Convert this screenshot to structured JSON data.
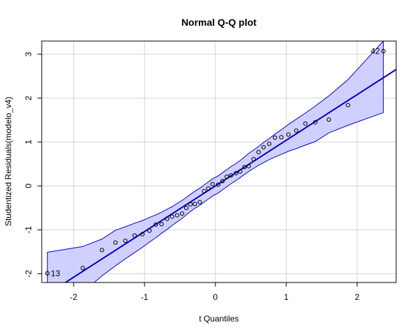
{
  "chart_data": {
    "type": "scatter",
    "title": "Normal Q-Q plot",
    "xlabel": "t Quantiles",
    "ylabel": "Studentized Residuals(modelo_v4)",
    "xlim": [
      -2.45,
      2.55
    ],
    "ylim": [
      -2.2,
      3.3
    ],
    "grid": true,
    "x_ticks": [
      -2,
      -1,
      0,
      1,
      2
    ],
    "y_ticks": [
      -2,
      -1,
      0,
      1,
      2,
      3
    ],
    "x_tick_labels": [
      "-2",
      "-1",
      "0",
      "1",
      "2"
    ],
    "y_tick_labels": [
      "-2",
      "-1",
      "0",
      "1",
      "2",
      "3"
    ],
    "colors": {
      "points": "#000000",
      "line": "#0000cd",
      "band_fill": "#c8c8ff",
      "band_stroke": "#0000cd",
      "grid": "#d3d3d3"
    },
    "reference_line": {
      "intercept": 0.0,
      "slope": 1.04
    },
    "points": [
      {
        "x": -2.37,
        "y": -1.99,
        "label": "13"
      },
      {
        "x": -1.87,
        "y": -1.87
      },
      {
        "x": -1.6,
        "y": -1.46
      },
      {
        "x": -1.41,
        "y": -1.29
      },
      {
        "x": -1.27,
        "y": -1.25
      },
      {
        "x": -1.14,
        "y": -1.13
      },
      {
        "x": -1.03,
        "y": -1.1
      },
      {
        "x": -0.93,
        "y": -1.02
      },
      {
        "x": -0.84,
        "y": -0.88
      },
      {
        "x": -0.76,
        "y": -0.87
      },
      {
        "x": -0.68,
        "y": -0.75
      },
      {
        "x": -0.61,
        "y": -0.7
      },
      {
        "x": -0.54,
        "y": -0.67
      },
      {
        "x": -0.47,
        "y": -0.63
      },
      {
        "x": -0.41,
        "y": -0.5
      },
      {
        "x": -0.35,
        "y": -0.42
      },
      {
        "x": -0.29,
        "y": -0.41
      },
      {
        "x": -0.22,
        "y": -0.37
      },
      {
        "x": -0.16,
        "y": -0.12
      },
      {
        "x": -0.1,
        "y": -0.06
      },
      {
        "x": -0.04,
        "y": 0.04
      },
      {
        "x": 0.04,
        "y": 0.03
      },
      {
        "x": 0.1,
        "y": 0.11
      },
      {
        "x": 0.16,
        "y": 0.21
      },
      {
        "x": 0.22,
        "y": 0.24
      },
      {
        "x": 0.29,
        "y": 0.29
      },
      {
        "x": 0.35,
        "y": 0.33
      },
      {
        "x": 0.41,
        "y": 0.43
      },
      {
        "x": 0.47,
        "y": 0.45
      },
      {
        "x": 0.54,
        "y": 0.61
      },
      {
        "x": 0.61,
        "y": 0.77
      },
      {
        "x": 0.68,
        "y": 0.88
      },
      {
        "x": 0.76,
        "y": 0.96
      },
      {
        "x": 0.84,
        "y": 1.1
      },
      {
        "x": 0.93,
        "y": 1.11
      },
      {
        "x": 1.03,
        "y": 1.17
      },
      {
        "x": 1.14,
        "y": 1.26
      },
      {
        "x": 1.27,
        "y": 1.42
      },
      {
        "x": 1.41,
        "y": 1.45
      },
      {
        "x": 1.6,
        "y": 1.51
      },
      {
        "x": 1.87,
        "y": 1.84
      },
      {
        "x": 2.37,
        "y": 3.07,
        "label": "42"
      }
    ],
    "confidence_band": {
      "x": [
        -2.37,
        -1.87,
        -1.6,
        -1.41,
        -1.27,
        -1.14,
        -1.03,
        -0.93,
        -0.84,
        -0.76,
        -0.68,
        -0.61,
        -0.54,
        -0.47,
        -0.41,
        -0.35,
        -0.29,
        -0.22,
        -0.16,
        -0.1,
        -0.04,
        0.04,
        0.1,
        0.16,
        0.22,
        0.29,
        0.35,
        0.41,
        0.47,
        0.54,
        0.61,
        0.68,
        0.76,
        0.84,
        0.93,
        1.03,
        1.14,
        1.27,
        1.41,
        1.6,
        1.87,
        2.37
      ],
      "upper": [
        -1.51,
        -1.38,
        -1.21,
        -1.01,
        -0.93,
        -0.85,
        -0.79,
        -0.72,
        -0.66,
        -0.6,
        -0.53,
        -0.47,
        -0.4,
        -0.33,
        -0.26,
        -0.19,
        -0.12,
        -0.05,
        0.02,
        0.09,
        0.16,
        0.23,
        0.3,
        0.37,
        0.44,
        0.51,
        0.58,
        0.66,
        0.74,
        0.82,
        0.9,
        0.99,
        1.08,
        1.18,
        1.28,
        1.4,
        1.52,
        1.66,
        1.82,
        2.05,
        2.42,
        3.3
      ],
      "lower": [
        -3.3,
        -2.42,
        -2.05,
        -1.82,
        -1.66,
        -1.52,
        -1.4,
        -1.28,
        -1.18,
        -1.08,
        -0.99,
        -0.9,
        -0.82,
        -0.74,
        -0.66,
        -0.58,
        -0.51,
        -0.44,
        -0.37,
        -0.3,
        -0.23,
        -0.16,
        -0.09,
        -0.02,
        0.05,
        0.12,
        0.19,
        0.26,
        0.33,
        0.4,
        0.47,
        0.53,
        0.6,
        0.66,
        0.72,
        0.79,
        0.85,
        0.93,
        1.01,
        1.21,
        1.38,
        1.67
      ]
    }
  }
}
